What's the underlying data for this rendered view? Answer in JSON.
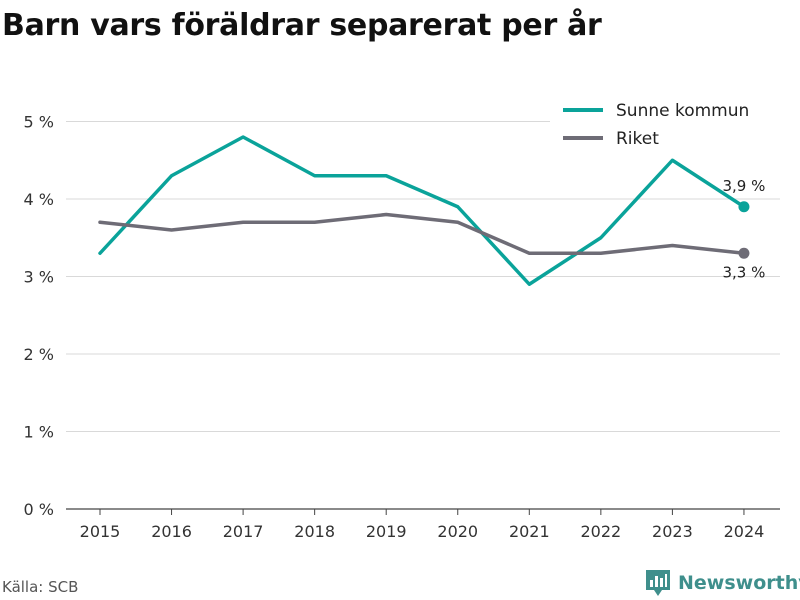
{
  "title": "Barn vars föräldrar separerat per år",
  "source": "Källa: SCB",
  "brand": {
    "name": "Newsworthy",
    "icon": "newsworthy-logo-icon",
    "color": "#3f8f8c"
  },
  "chart_data": {
    "type": "line",
    "x": [
      "2015",
      "2016",
      "2017",
      "2018",
      "2019",
      "2020",
      "2021",
      "2022",
      "2023",
      "2024"
    ],
    "series": [
      {
        "name": "Sunne kommun",
        "color": "#0aa39a",
        "values": [
          3.3,
          4.3,
          4.8,
          4.3,
          4.3,
          3.9,
          2.9,
          3.5,
          4.5,
          3.9
        ],
        "end_label": "3,9 %"
      },
      {
        "name": "Riket",
        "color": "#6e6c76",
        "values": [
          3.7,
          3.6,
          3.7,
          3.7,
          3.8,
          3.7,
          3.3,
          3.3,
          3.4,
          3.3
        ],
        "end_label": "3,3 %"
      }
    ],
    "yticks": [
      0,
      1,
      2,
      3,
      4,
      5
    ],
    "ytick_labels": [
      "0 %",
      "1 %",
      "2 %",
      "3 %",
      "4 %",
      "5 %"
    ],
    "ylim": [
      0,
      5.5
    ],
    "grid": true,
    "legend": "top-right"
  }
}
